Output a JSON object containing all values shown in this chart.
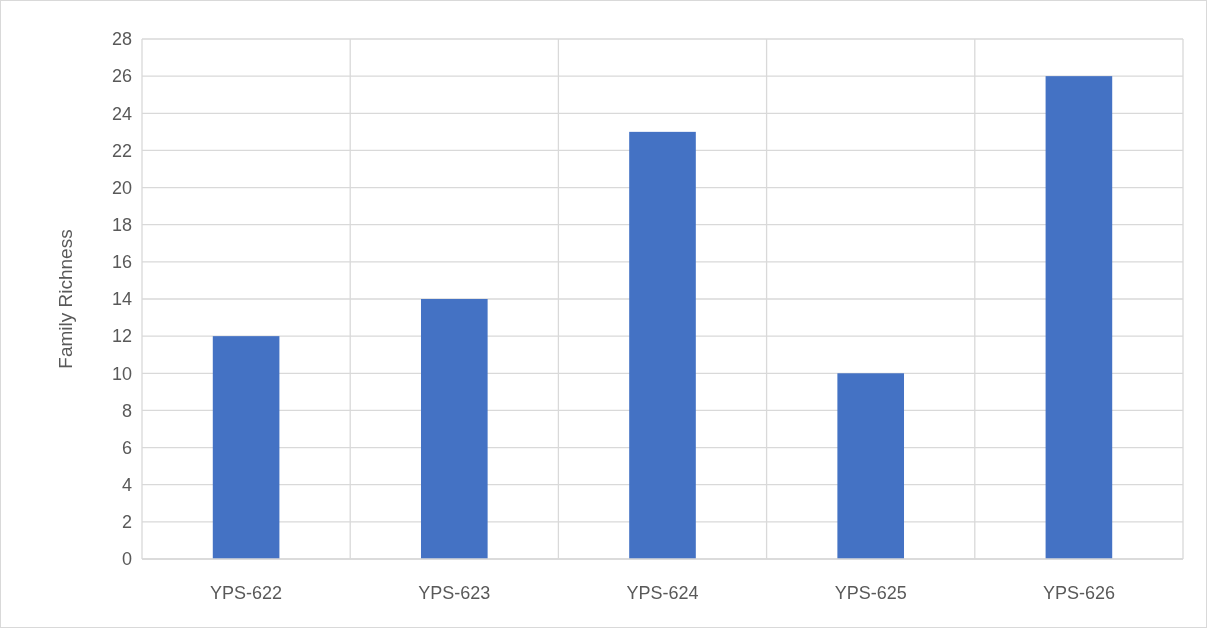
{
  "chart_data": {
    "type": "bar",
    "ylabel": "Family Richness",
    "categories": [
      "YPS-622",
      "YPS-623",
      "YPS-624",
      "YPS-625",
      "YPS-626"
    ],
    "values": [
      12,
      14,
      23,
      10,
      26
    ],
    "color": "#4472c4",
    "ylim": [
      0,
      28
    ],
    "yticks": [
      0,
      2,
      4,
      6,
      8,
      10,
      12,
      14,
      16,
      18,
      20,
      22,
      24,
      26,
      28
    ],
    "grid": true
  }
}
